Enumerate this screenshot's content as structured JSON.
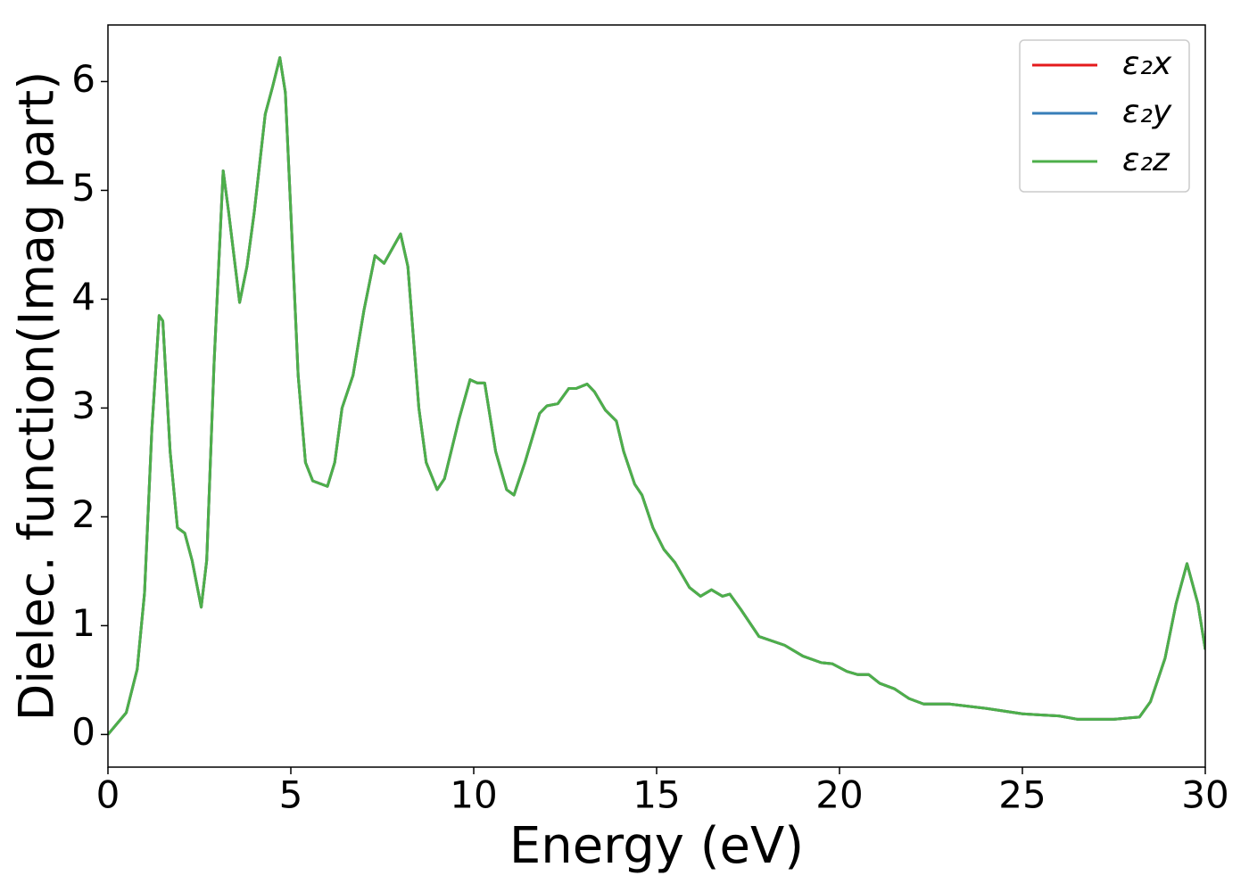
{
  "chart_data": {
    "type": "line",
    "xlabel": "Energy (eV)",
    "ylabel": "Dielec. function(Imag part)",
    "x": [
      0,
      0.5,
      0.8,
      1.0,
      1.2,
      1.4,
      1.5,
      1.7,
      1.9,
      2.1,
      2.3,
      2.55,
      2.7,
      2.9,
      3.15,
      3.3,
      3.6,
      3.8,
      4.0,
      4.3,
      4.5,
      4.7,
      4.85,
      5.0,
      5.2,
      5.4,
      5.6,
      6.0,
      6.2,
      6.4,
      6.7,
      7.0,
      7.3,
      7.55,
      7.75,
      8.0,
      8.2,
      8.5,
      8.7,
      9.0,
      9.2,
      9.6,
      9.9,
      10.1,
      10.3,
      10.6,
      10.9,
      11.1,
      11.4,
      11.8,
      12.0,
      12.3,
      12.6,
      12.8,
      13.1,
      13.3,
      13.6,
      13.9,
      14.1,
      14.4,
      14.6,
      14.9,
      15.2,
      15.5,
      15.9,
      16.2,
      16.5,
      16.8,
      17.0,
      17.3,
      17.8,
      18.5,
      19.0,
      19.5,
      19.8,
      20.2,
      20.5,
      20.8,
      21.1,
      21.5,
      21.9,
      22.3,
      23.0,
      24.0,
      25.0,
      25.5,
      26.0,
      26.5,
      27.5,
      28.2,
      28.5,
      28.9,
      29.2,
      29.5,
      29.8,
      30.0
    ],
    "series": [
      {
        "name": "ε₂x",
        "color": "#e41a1c",
        "values": [
          0,
          0.2,
          0.6,
          1.3,
          2.8,
          3.85,
          3.8,
          2.6,
          1.9,
          1.85,
          1.6,
          1.17,
          1.6,
          3.4,
          5.18,
          4.8,
          3.97,
          4.3,
          4.8,
          5.7,
          5.95,
          6.22,
          5.9,
          4.8,
          3.3,
          2.5,
          2.33,
          2.28,
          2.5,
          3.0,
          3.3,
          3.9,
          4.4,
          4.33,
          4.45,
          4.6,
          4.3,
          3.0,
          2.5,
          2.25,
          2.35,
          2.9,
          3.26,
          3.23,
          3.23,
          2.6,
          2.25,
          2.2,
          2.5,
          2.95,
          3.02,
          3.04,
          3.18,
          3.18,
          3.22,
          3.15,
          2.98,
          2.88,
          2.6,
          2.3,
          2.2,
          1.9,
          1.7,
          1.58,
          1.35,
          1.27,
          1.33,
          1.27,
          1.29,
          1.15,
          0.9,
          0.82,
          0.72,
          0.66,
          0.65,
          0.58,
          0.55,
          0.55,
          0.47,
          0.42,
          0.33,
          0.28,
          0.28,
          0.24,
          0.19,
          0.18,
          0.17,
          0.14,
          0.14,
          0.16,
          0.3,
          0.7,
          1.2,
          1.57,
          1.2,
          0.78
        ]
      },
      {
        "name": "ε₂y",
        "color": "#377eb8",
        "values": [
          0,
          0.2,
          0.6,
          1.3,
          2.8,
          3.85,
          3.8,
          2.6,
          1.9,
          1.85,
          1.6,
          1.17,
          1.6,
          3.4,
          5.18,
          4.8,
          3.97,
          4.3,
          4.8,
          5.7,
          5.95,
          6.22,
          5.9,
          4.8,
          3.3,
          2.5,
          2.33,
          2.28,
          2.5,
          3.0,
          3.3,
          3.9,
          4.4,
          4.33,
          4.45,
          4.6,
          4.3,
          3.0,
          2.5,
          2.25,
          2.35,
          2.9,
          3.26,
          3.23,
          3.23,
          2.6,
          2.25,
          2.2,
          2.5,
          2.95,
          3.02,
          3.04,
          3.18,
          3.18,
          3.22,
          3.15,
          2.98,
          2.88,
          2.6,
          2.3,
          2.2,
          1.9,
          1.7,
          1.58,
          1.35,
          1.27,
          1.33,
          1.27,
          1.29,
          1.15,
          0.9,
          0.82,
          0.72,
          0.66,
          0.65,
          0.58,
          0.55,
          0.55,
          0.47,
          0.42,
          0.33,
          0.28,
          0.28,
          0.24,
          0.19,
          0.18,
          0.17,
          0.14,
          0.14,
          0.16,
          0.3,
          0.7,
          1.2,
          1.57,
          1.2,
          0.78
        ]
      },
      {
        "name": "ε₂z",
        "color": "#4daf4a",
        "values": [
          0,
          0.2,
          0.6,
          1.3,
          2.8,
          3.85,
          3.8,
          2.6,
          1.9,
          1.85,
          1.6,
          1.17,
          1.6,
          3.4,
          5.18,
          4.8,
          3.97,
          4.3,
          4.8,
          5.7,
          5.95,
          6.22,
          5.9,
          4.8,
          3.3,
          2.5,
          2.33,
          2.28,
          2.5,
          3.0,
          3.3,
          3.9,
          4.4,
          4.33,
          4.45,
          4.6,
          4.3,
          3.0,
          2.5,
          2.25,
          2.35,
          2.9,
          3.26,
          3.23,
          3.23,
          2.6,
          2.25,
          2.2,
          2.5,
          2.95,
          3.02,
          3.04,
          3.18,
          3.18,
          3.22,
          3.15,
          2.98,
          2.88,
          2.6,
          2.3,
          2.2,
          1.9,
          1.7,
          1.58,
          1.35,
          1.27,
          1.33,
          1.27,
          1.29,
          1.15,
          0.9,
          0.82,
          0.72,
          0.66,
          0.65,
          0.58,
          0.55,
          0.55,
          0.47,
          0.42,
          0.33,
          0.28,
          0.28,
          0.24,
          0.19,
          0.18,
          0.17,
          0.14,
          0.14,
          0.16,
          0.3,
          0.7,
          1.2,
          1.57,
          1.2,
          0.78
        ]
      }
    ],
    "xlim": [
      0,
      30
    ],
    "xticks": [
      0,
      5,
      10,
      15,
      20,
      25,
      30
    ],
    "ylim": [
      -0.3,
      6.52
    ],
    "yticks": [
      0,
      1,
      2,
      3,
      4,
      5,
      6
    ],
    "legend": "upper right",
    "grid": false
  }
}
